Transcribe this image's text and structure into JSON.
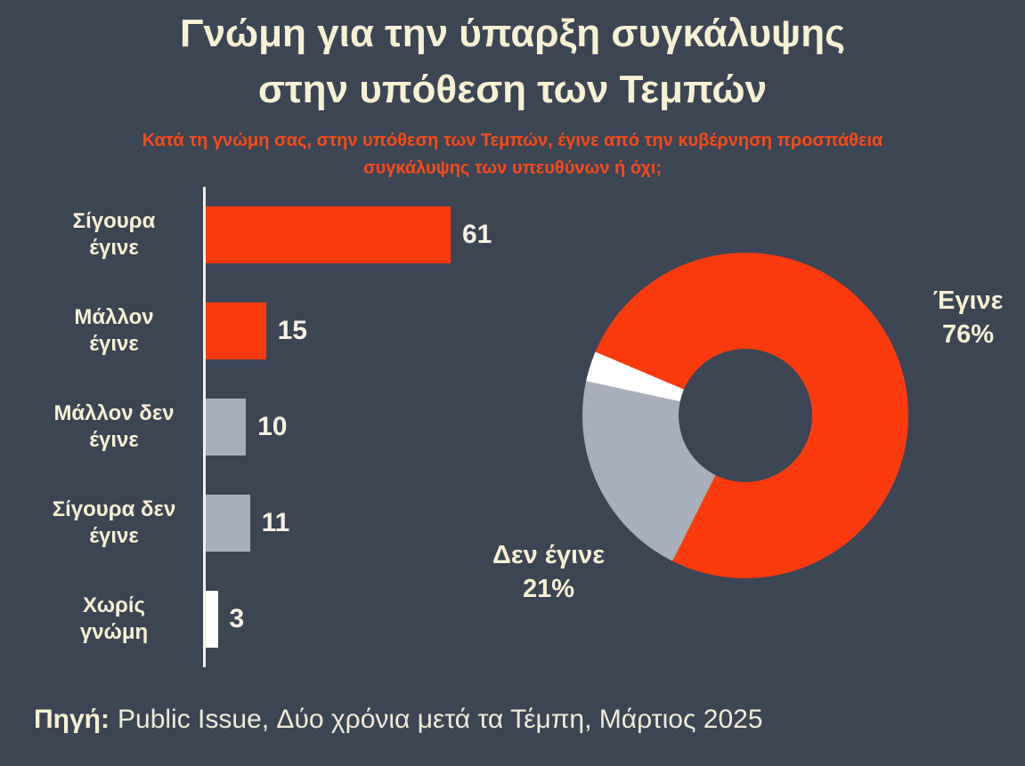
{
  "title": {
    "line1": "Γνώμη για την ύπαρξη συγκάλυψης",
    "line2": "στην υπόθεση των Τεμπών"
  },
  "subtitle": {
    "line1": "Κατά τη γνώμη σας, στην υπόθεση των Τεμπών, έγινε από την κυβέρνηση προσπάθεια",
    "line2": "συγκάλυψης των υπευθύνων ή όχι;"
  },
  "source": {
    "label": "Πηγή:",
    "text": "Public Issue, Δύο χρόνια μετά τα Τέμπη, Μάρτιος 2025"
  },
  "colors": {
    "background": "#3c4554",
    "accent_orange": "#fb3a0e",
    "gray": "#a8aebc",
    "white": "#ffffff",
    "cream_text": "#f7f1d3",
    "subtitle_orange": "#fb4a17"
  },
  "chart_data": [
    {
      "type": "bar",
      "orientation": "horizontal",
      "categories": [
        "Σίγουρα έγινε",
        "Μάλλον έγινε",
        "Μάλλον δεν έγινε",
        "Σίγουρα δεν έγινε",
        "Χωρίς γνώμη"
      ],
      "categories_display": [
        "Σίγουρα\nέγινε",
        "Μάλλον\nέγινε",
        "Μάλλον δεν\nέγινε",
        "Σίγουρα δεν\nέγινε",
        "Χωρίς\nγνώμη"
      ],
      "values": [
        61,
        15,
        10,
        11,
        3
      ],
      "bar_colors": [
        "#fb3a0e",
        "#fb3a0e",
        "#a8aebc",
        "#a8aebc",
        "#ffffff"
      ],
      "xlim": [
        0,
        61
      ],
      "grid": false,
      "value_labels_shown": true
    },
    {
      "type": "pie",
      "donut": true,
      "rotation_deg": 293,
      "segments": [
        {
          "label": "Έγινε",
          "value": 76,
          "color": "#fb3a0e"
        },
        {
          "label": "Δεν έγινε",
          "value": 21,
          "color": "#a8aebc"
        },
        {
          "label": "",
          "value": 3,
          "color": "#ffffff"
        }
      ],
      "callouts": {
        "egine": "Έγινε\n76%",
        "den_egine": "Δεν έγινε\n21%"
      }
    }
  ]
}
